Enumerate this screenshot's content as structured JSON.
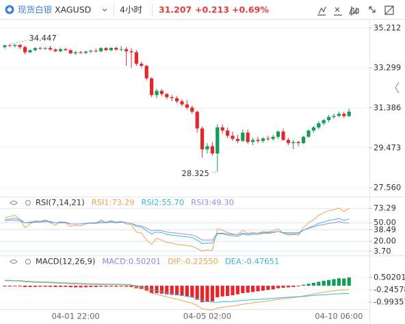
{
  "header": {
    "symbol_cn": "现货白银",
    "symbol": "XAGUSD",
    "interval": "4小时",
    "price": "31.207",
    "change": "+0.213",
    "change_pct": "+0.69%"
  },
  "chart_data": [
    {
      "type": "candlestick",
      "up_color": "#129c55",
      "down_color": "#e5262b",
      "open": [
        34.3,
        34.38,
        34.35,
        34.4,
        34.3,
        34.05,
        34.15,
        34.25,
        34.22,
        34.25,
        34.18,
        34.1,
        34.2,
        34.15,
        34.0,
        34.05,
        34.02,
        34.08,
        34.12,
        34.1,
        34.25,
        34.15,
        34.26,
        34.18,
        34.2,
        34.1,
        34.05,
        33.5,
        33.4,
        32.8,
        32.0,
        32.2,
        32.05,
        31.9,
        31.85,
        31.7,
        31.55,
        31.4,
        31.2,
        30.4,
        29.4,
        29.55,
        29.2,
        30.45,
        30.3,
        30.05,
        29.9,
        29.8,
        30.2,
        29.75,
        29.85,
        29.8,
        29.92,
        29.9,
        30.0,
        30.25,
        29.85,
        29.7,
        29.75,
        29.7,
        30.0,
        30.3,
        30.45,
        30.65,
        30.8,
        30.95,
        31.0,
        31.1,
        30.99
      ],
      "high": [
        34.42,
        34.447,
        34.44,
        34.44,
        34.36,
        34.2,
        34.3,
        34.32,
        34.3,
        34.35,
        34.25,
        34.28,
        34.26,
        34.2,
        34.1,
        34.12,
        34.12,
        34.18,
        34.22,
        34.3,
        34.3,
        34.28,
        34.32,
        34.35,
        34.3,
        34.25,
        34.15,
        33.6,
        33.45,
        32.85,
        32.3,
        32.3,
        32.1,
        32.0,
        31.95,
        31.8,
        31.75,
        31.5,
        31.25,
        30.5,
        29.7,
        29.75,
        30.6,
        30.6,
        30.45,
        30.25,
        30.1,
        30.35,
        30.35,
        29.95,
        30.0,
        29.98,
        30.05,
        30.1,
        30.3,
        30.4,
        29.95,
        29.85,
        29.8,
        30.05,
        30.35,
        30.5,
        30.75,
        30.85,
        31.05,
        31.1,
        31.2,
        31.2,
        31.35
      ],
      "low": [
        34.22,
        34.3,
        34.28,
        34.2,
        33.95,
        34.0,
        34.1,
        34.18,
        34.15,
        34.12,
        34.05,
        34.05,
        34.12,
        33.95,
        33.92,
        33.98,
        33.96,
        34.02,
        34.05,
        34.05,
        34.1,
        34.1,
        34.12,
        34.1,
        33.4,
        33.3,
        33.4,
        33.3,
        32.7,
        31.9,
        31.85,
        31.95,
        31.8,
        31.7,
        31.6,
        31.45,
        31.3,
        31.1,
        30.2,
        29.0,
        29.2,
        29.1,
        28.325,
        30.15,
        29.95,
        29.8,
        29.7,
        29.75,
        29.65,
        29.6,
        29.7,
        29.72,
        29.8,
        29.82,
        29.9,
        29.8,
        29.6,
        29.4,
        29.55,
        29.65,
        29.95,
        30.2,
        30.35,
        30.55,
        30.7,
        30.85,
        30.95,
        30.9,
        30.95
      ],
      "close": [
        34.38,
        34.35,
        34.4,
        34.3,
        34.05,
        34.15,
        34.25,
        34.22,
        34.25,
        34.18,
        34.1,
        34.2,
        34.15,
        34.0,
        34.05,
        34.02,
        34.08,
        34.12,
        34.1,
        34.25,
        34.15,
        34.26,
        34.18,
        34.2,
        34.1,
        34.05,
        33.5,
        33.4,
        32.8,
        32.0,
        32.2,
        32.05,
        31.9,
        31.85,
        31.7,
        31.55,
        31.4,
        31.2,
        30.4,
        29.4,
        29.55,
        29.2,
        30.45,
        30.3,
        30.05,
        29.9,
        29.8,
        30.2,
        29.75,
        29.85,
        29.8,
        29.92,
        29.9,
        30.0,
        30.25,
        29.85,
        29.7,
        29.75,
        29.7,
        30.0,
        30.3,
        30.45,
        30.65,
        30.8,
        30.95,
        31.0,
        31.1,
        30.99,
        31.207
      ],
      "ylim": [
        27.2,
        35.57
      ],
      "yticks": [
        35.212,
        33.299,
        31.386,
        29.473,
        {
          "value": 27.56,
          "label": "27.560"
        }
      ],
      "grid": true
    },
    {
      "type": "line",
      "title": "RSI(7,14,21)",
      "ylim": [
        -2,
        88
      ],
      "yticks": [
        73.29,
        {
          "value": 50,
          "label": "50.00"
        },
        38.49,
        {
          "value": 20,
          "label": "20.00"
        },
        {
          "value": 3.7,
          "label": "3.70"
        }
      ],
      "series": [
        {
          "name": "RSI1:73.29",
          "color": "#f3a04b",
          "values": [
            58,
            60,
            62,
            55,
            42,
            48,
            53,
            52,
            55,
            50,
            46,
            52,
            50,
            44,
            46,
            45,
            48,
            50,
            49,
            55,
            50,
            54,
            50,
            52,
            48,
            47,
            35,
            33,
            22,
            15,
            25,
            22,
            18,
            17,
            15,
            14,
            13,
            12,
            8,
            4,
            6,
            5,
            40,
            38,
            34,
            32,
            30,
            38,
            33,
            34,
            33,
            36,
            35,
            37,
            40,
            33,
            30,
            31,
            30,
            42,
            50,
            55,
            62,
            66,
            70,
            71,
            74,
            68,
            73.29
          ]
        },
        {
          "name": "RSI2:55.70",
          "color": "#35bcd3",
          "values": [
            55,
            56,
            57,
            55,
            50,
            51,
            52,
            52,
            53,
            52,
            50,
            51,
            51,
            48,
            48,
            48,
            49,
            50,
            50,
            52,
            51,
            52,
            51,
            52,
            50,
            49,
            44,
            43,
            37,
            32,
            35,
            34,
            31,
            30,
            29,
            28,
            27,
            26,
            22,
            16,
            17,
            17,
            32,
            32,
            30,
            29,
            28,
            32,
            30,
            31,
            31,
            33,
            33,
            34,
            36,
            33,
            32,
            32,
            32,
            38,
            42,
            45,
            49,
            51,
            54,
            55,
            57,
            54,
            55.7
          ]
        },
        {
          "name": "RSI3:49.30",
          "color": "#9b8de0",
          "values": [
            53,
            54,
            54,
            53,
            50,
            50,
            51,
            51,
            52,
            51,
            50,
            50,
            50,
            48,
            48,
            48,
            49,
            49,
            49,
            50,
            50,
            51,
            50,
            51,
            50,
            49,
            46,
            45,
            41,
            37,
            38,
            37,
            35,
            34,
            33,
            32,
            31,
            30,
            27,
            22,
            22,
            22,
            33,
            33,
            32,
            31,
            31,
            33,
            32,
            33,
            33,
            34,
            34,
            35,
            36,
            34,
            34,
            34,
            34,
            38,
            41,
            43,
            46,
            47,
            49,
            50,
            52,
            50,
            49.3
          ]
        }
      ]
    },
    {
      "type": "macd",
      "title": "MACD(12,26,9)",
      "ylim": [
        -1.7,
        0.92
      ],
      "yticks": [
        0.50201,
        -0.24578,
        -0.99357
      ],
      "categories": [
        null,
        null,
        null,
        null,
        null,
        null,
        null,
        null,
        null,
        null,
        null,
        null,
        null,
        null,
        "04-01 22:00",
        null,
        null,
        null,
        null,
        null,
        null,
        null,
        null,
        null,
        null,
        null,
        null,
        null,
        null,
        null,
        null,
        null,
        null,
        null,
        null,
        null,
        null,
        null,
        null,
        null,
        "04-05 02:00",
        null,
        null,
        null,
        null,
        null,
        null,
        null,
        null,
        null,
        null,
        null,
        null,
        null,
        null,
        null,
        null,
        null,
        null,
        null,
        null,
        null,
        null,
        null,
        null,
        null,
        "04-10 06:00",
        null,
        null
      ],
      "up_color": "#129c55",
      "down_color": "#e5262b",
      "series": [
        {
          "name": "MACD:0.50201",
          "kind": "bar",
          "color": "#9b7fe0",
          "values": [
            -0.05,
            -0.05,
            -0.04,
            -0.05,
            -0.08,
            -0.08,
            -0.07,
            -0.06,
            -0.06,
            -0.07,
            -0.08,
            -0.07,
            -0.07,
            -0.09,
            -0.1,
            -0.1,
            -0.09,
            -0.08,
            -0.08,
            -0.06,
            -0.06,
            -0.05,
            -0.06,
            -0.05,
            -0.06,
            -0.08,
            -0.15,
            -0.2,
            -0.3,
            -0.45,
            -0.45,
            -0.48,
            -0.52,
            -0.55,
            -0.58,
            -0.62,
            -0.66,
            -0.7,
            -0.85,
            -1.0,
            -0.98,
            -0.95,
            -0.7,
            -0.65,
            -0.62,
            -0.58,
            -0.52,
            -0.45,
            -0.42,
            -0.38,
            -0.34,
            -0.3,
            -0.26,
            -0.22,
            -0.15,
            -0.12,
            -0.1,
            -0.08,
            -0.04,
            0.06,
            0.12,
            0.18,
            0.24,
            0.3,
            0.35,
            0.4,
            0.45,
            0.44,
            0.50201
          ]
        },
        {
          "name": "DIF:-0.22550",
          "kind": "line",
          "color": "#f3a04b",
          "values": [
            0.3,
            0.3,
            0.29,
            0.28,
            0.24,
            0.22,
            0.21,
            0.2,
            0.19,
            0.18,
            0.16,
            0.15,
            0.14,
            0.12,
            0.1,
            0.09,
            0.08,
            0.08,
            0.07,
            0.08,
            0.07,
            0.07,
            0.06,
            0.06,
            0.05,
            0.02,
            -0.08,
            -0.15,
            -0.28,
            -0.45,
            -0.52,
            -0.6,
            -0.68,
            -0.75,
            -0.82,
            -0.9,
            -0.98,
            -1.05,
            -1.2,
            -1.4,
            -1.45,
            -1.48,
            -1.35,
            -1.3,
            -1.27,
            -1.24,
            -1.18,
            -1.12,
            -1.08,
            -1.04,
            -1.0,
            -0.96,
            -0.92,
            -0.88,
            -0.82,
            -0.78,
            -0.75,
            -0.72,
            -0.68,
            -0.62,
            -0.56,
            -0.5,
            -0.45,
            -0.4,
            -0.35,
            -0.31,
            -0.27,
            -0.25,
            -0.2255
          ]
        },
        {
          "name": "DEA:-0.47651",
          "kind": "line",
          "color": "#35bcd3",
          "values": [
            0.325,
            0.325,
            0.31,
            0.305,
            0.28,
            0.26,
            0.245,
            0.23,
            0.22,
            0.215,
            0.2,
            0.185,
            0.175,
            0.165,
            0.15,
            0.14,
            0.125,
            0.12,
            0.11,
            0.11,
            0.1,
            0.095,
            0.09,
            0.085,
            0.08,
            0.06,
            -0.005,
            -0.05,
            -0.13,
            -0.225,
            -0.295,
            -0.36,
            -0.42,
            -0.475,
            -0.53,
            -0.59,
            -0.65,
            -0.7,
            -0.775,
            -0.9,
            -0.96,
            -1.005,
            -1.0,
            -0.975,
            -0.96,
            -0.95,
            -0.92,
            -0.895,
            -0.87,
            -0.85,
            -0.83,
            -0.81,
            -0.79,
            -0.77,
            -0.745,
            -0.72,
            -0.7,
            -0.68,
            -0.66,
            -0.65,
            -0.62,
            -0.59,
            -0.57,
            -0.55,
            -0.525,
            -0.51,
            -0.495,
            -0.47,
            -0.47651
          ]
        }
      ]
    }
  ]
}
